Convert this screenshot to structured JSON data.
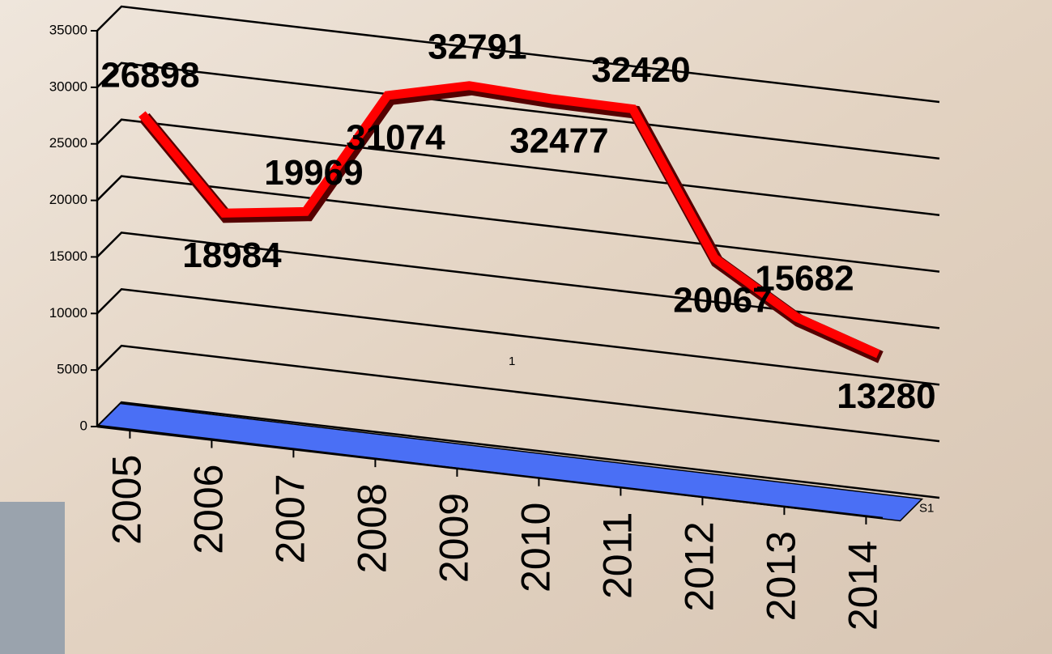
{
  "chart_data": {
    "type": "line",
    "categories": [
      "2005",
      "2006",
      "2007",
      "2008",
      "2009",
      "2010",
      "2011",
      "2012",
      "2013",
      "2014"
    ],
    "series": [
      {
        "name": "S1",
        "color": "#ff0000",
        "values": [
          26898,
          18984,
          19969,
          31074,
          32791,
          32477,
          32420,
          20067,
          15682,
          13280
        ]
      }
    ],
    "depth_category": "1",
    "ylim": [
      0,
      35000
    ],
    "yticks": [
      0,
      5000,
      10000,
      15000,
      20000,
      25000,
      30000,
      35000
    ],
    "grid": true,
    "floor_color": "#4a6ff5"
  }
}
